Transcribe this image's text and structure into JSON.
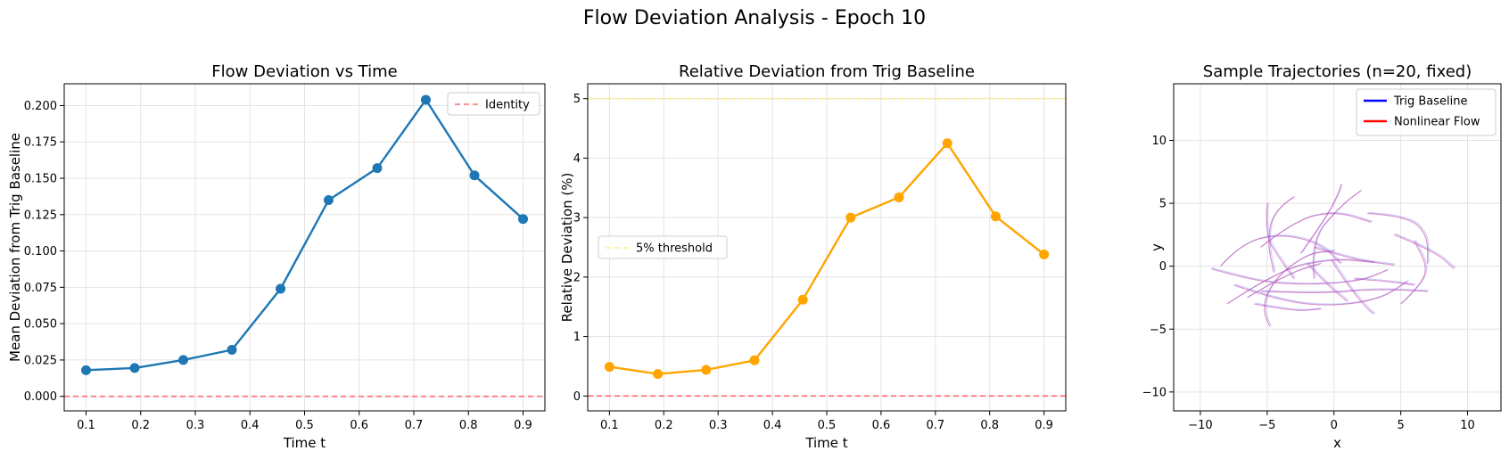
{
  "figure": {
    "suptitle": "Flow Deviation Analysis - Epoch 10"
  },
  "chart_data": [
    {
      "type": "line",
      "title": "Flow Deviation vs Time",
      "xlabel": "Time t",
      "ylabel": "Mean Deviation from Trig Baseline",
      "xlim": [
        0.06,
        0.94
      ],
      "ylim": [
        -0.01,
        0.215
      ],
      "xticks": [
        0.1,
        0.2,
        0.3,
        0.4,
        0.5,
        0.6,
        0.7,
        0.8,
        0.9
      ],
      "yticks": [
        0.0,
        0.025,
        0.05,
        0.075,
        0.1,
        0.125,
        0.15,
        0.175,
        0.2
      ],
      "xtick_labels": [
        "0.1",
        "0.2",
        "0.3",
        "0.4",
        "0.5",
        "0.6",
        "0.7",
        "0.8",
        "0.9"
      ],
      "ytick_labels": [
        "0.000",
        "0.025",
        "0.050",
        "0.075",
        "0.100",
        "0.125",
        "0.150",
        "0.175",
        "0.200"
      ],
      "grid": true,
      "legend_position": "upper right",
      "series": [
        {
          "x": [
            0.1,
            0.189,
            0.278,
            0.367,
            0.456,
            0.544,
            0.633,
            0.722,
            0.811,
            0.9
          ],
          "values": [
            0.018,
            0.0195,
            0.025,
            0.032,
            0.074,
            0.135,
            0.157,
            0.204,
            0.152,
            0.122
          ],
          "color": "#1f77b4",
          "marker": "circle"
        }
      ],
      "hlines": [
        {
          "y": 0.0,
          "label": "Identity",
          "color": "#ff6b6b",
          "style": "dashed"
        }
      ]
    },
    {
      "type": "line",
      "title": "Relative Deviation from Trig Baseline",
      "xlabel": "Time t",
      "ylabel": "Relative Deviation (%)",
      "xlim": [
        0.06,
        0.94
      ],
      "ylim": [
        -0.25,
        5.25
      ],
      "xticks": [
        0.1,
        0.2,
        0.3,
        0.4,
        0.5,
        0.6,
        0.7,
        0.8,
        0.9
      ],
      "yticks": [
        0,
        1,
        2,
        3,
        4,
        5
      ],
      "xtick_labels": [
        "0.1",
        "0.2",
        "0.3",
        "0.4",
        "0.5",
        "0.6",
        "0.7",
        "0.8",
        "0.9"
      ],
      "ytick_labels": [
        "0",
        "1",
        "2",
        "3",
        "4",
        "5"
      ],
      "grid": true,
      "legend_position": "center left",
      "series": [
        {
          "x": [
            0.1,
            0.189,
            0.278,
            0.367,
            0.456,
            0.544,
            0.633,
            0.722,
            0.811,
            0.9
          ],
          "values": [
            0.49,
            0.37,
            0.44,
            0.6,
            1.62,
            3.0,
            3.34,
            4.25,
            3.02,
            2.38
          ],
          "color": "#ffa500",
          "marker": "circle"
        }
      ],
      "hlines": [
        {
          "y": 5,
          "label": "5% threshold",
          "color": "#ffee88",
          "style": "dashed"
        },
        {
          "y": 0,
          "color": "#ff6b6b",
          "style": "dashed"
        }
      ]
    },
    {
      "type": "line",
      "title": "Sample Trajectories (n=20, fixed)",
      "xlabel": "x",
      "ylabel": "y",
      "xlim": [
        -12,
        12.5
      ],
      "ylim": [
        -11.5,
        14.5
      ],
      "xticks": [
        -10,
        -5,
        0,
        5,
        10
      ],
      "yticks": [
        -10,
        -5,
        0,
        5,
        10
      ],
      "xtick_labels": [
        "−10",
        "−5",
        "0",
        "5",
        "10"
      ],
      "ytick_labels": [
        "−10",
        "−5",
        "0",
        "5",
        "10"
      ],
      "grid": true,
      "legend_position": "upper right",
      "legend": [
        {
          "label": "Trig Baseline",
          "color": "#0000ff"
        },
        {
          "label": "Nonlinear Flow",
          "color": "#ff0000"
        }
      ],
      "trajectory_colors": {
        "baseline": "#7f7fff",
        "flow": "#c040a0"
      },
      "trajectories": [
        [
          [
            -8.5,
            0.0
          ],
          [
            -7.0,
            1.8
          ],
          [
            -4.0,
            2.6
          ],
          [
            -1.0,
            1.8
          ],
          [
            0.5,
            0.2
          ]
        ],
        [
          [
            -9.2,
            -0.2
          ],
          [
            -6.0,
            -1.2
          ],
          [
            -2.0,
            -1.5
          ],
          [
            2.0,
            -1.2
          ],
          [
            4.0,
            -0.3
          ]
        ],
        [
          [
            -7.5,
            -1.5
          ],
          [
            -4.0,
            -2.8
          ],
          [
            0.0,
            -3.2
          ],
          [
            3.5,
            -2.6
          ],
          [
            5.5,
            -1.2
          ]
        ],
        [
          [
            -6.0,
            -3.0
          ],
          [
            -3.0,
            -3.6
          ],
          [
            -1.0,
            -3.4
          ]
        ],
        [
          [
            -3.0,
            5.5
          ],
          [
            -4.5,
            4.5
          ],
          [
            -5.0,
            2.0
          ],
          [
            -4.5,
            -0.5
          ]
        ],
        [
          [
            -5.0,
            5.0
          ],
          [
            -5.2,
            2.5
          ],
          [
            -4.0,
            0.5
          ],
          [
            -3.0,
            -1.0
          ]
        ],
        [
          [
            -5.5,
            1.5
          ],
          [
            -3.0,
            3.6
          ],
          [
            0.0,
            4.4
          ],
          [
            2.8,
            3.5
          ]
        ],
        [
          [
            -2.5,
            1.0
          ],
          [
            -0.5,
            4.0
          ],
          [
            0.5,
            6.2
          ],
          [
            0.5,
            6.5
          ]
        ],
        [
          [
            -1.5,
            -1.0
          ],
          [
            -1.8,
            2.0
          ],
          [
            0.5,
            4.8
          ],
          [
            2.0,
            6.0
          ]
        ],
        [
          [
            -4.8,
            -4.8
          ],
          [
            -5.5,
            -3.5
          ],
          [
            -4.5,
            -1.0
          ],
          [
            -2.0,
            1.0
          ],
          [
            0.0,
            1.2
          ]
        ],
        [
          [
            -0.2,
            0.5
          ],
          [
            1.0,
            -1.5
          ],
          [
            2.5,
            -3.4
          ],
          [
            3.0,
            -3.8
          ]
        ],
        [
          [
            -2.0,
            0.2
          ],
          [
            -0.5,
            -1.5
          ],
          [
            1.0,
            -2.8
          ]
        ],
        [
          [
            2.5,
            4.2
          ],
          [
            5.5,
            4.0
          ],
          [
            7.0,
            2.5
          ],
          [
            7.0,
            0.2
          ]
        ],
        [
          [
            -5.5,
            -2.0
          ],
          [
            -1.0,
            -2.2
          ],
          [
            3.0,
            -1.8
          ],
          [
            7.0,
            -2.0
          ]
        ],
        [
          [
            4.5,
            2.5
          ],
          [
            7.5,
            1.2
          ],
          [
            9.0,
            -0.2
          ]
        ],
        [
          [
            -8.0,
            -3.0
          ],
          [
            -4.0,
            -0.2
          ],
          [
            0.0,
            0.6
          ],
          [
            3.0,
            0.3
          ]
        ],
        [
          [
            -6.5,
            -2.5
          ],
          [
            -3.5,
            -0.6
          ],
          [
            -1.0,
            0.2
          ]
        ],
        [
          [
            5.0,
            -3.0
          ],
          [
            6.5,
            -1.5
          ],
          [
            7.0,
            0.0
          ],
          [
            6.0,
            2.0
          ]
        ],
        [
          [
            1.5,
            -1.0
          ],
          [
            4.0,
            -1.2
          ],
          [
            6.0,
            -1.5
          ]
        ],
        [
          [
            -1.5,
            1.5
          ],
          [
            1.5,
            0.5
          ],
          [
            4.5,
            0.1
          ]
        ]
      ]
    }
  ]
}
